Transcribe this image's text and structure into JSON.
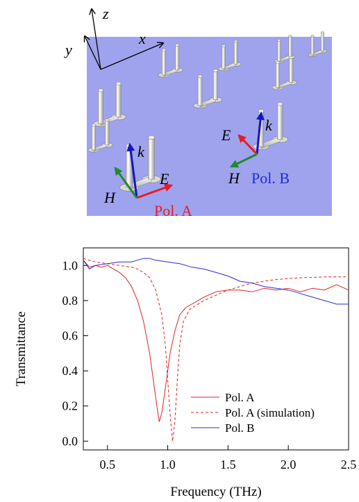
{
  "diagram": {
    "axes": {
      "x": "x",
      "y": "y",
      "z": "z"
    },
    "vectors": {
      "E": "E",
      "H": "H",
      "k": "k"
    },
    "pol_a_label": "Pol. A",
    "pol_b_label": "Pol. B",
    "colors": {
      "background": "#9fa3ee",
      "red": "#e51c23",
      "green": "#1f8a2a",
      "blue": "#1414c8",
      "pol_b_text": "#1d2bd6"
    }
  },
  "chart_data": {
    "type": "line",
    "xlabel": "Frequency (THz)",
    "ylabel": "Transmittance",
    "xlim": [
      0.3,
      2.5
    ],
    "ylim": [
      -0.05,
      1.1
    ],
    "xticks": [
      0.5,
      1.0,
      1.5,
      2.0,
      2.5
    ],
    "xtick_labels": [
      "0.5",
      "1.0",
      "1.5",
      "2.0",
      "2.5"
    ],
    "yticks": [
      0.0,
      0.2,
      0.4,
      0.6,
      0.8,
      1.0
    ],
    "ytick_labels": [
      "0.0",
      "0.2",
      "0.4",
      "0.6",
      "0.8",
      "1.0"
    ],
    "grid": false,
    "legend_position": "bottom-right",
    "series": [
      {
        "name": "Pol. A",
        "color": "#e02020",
        "dash": "solid",
        "points": [
          [
            0.3,
            1.03
          ],
          [
            0.35,
            0.99
          ],
          [
            0.4,
            1.0
          ],
          [
            0.45,
            0.99
          ],
          [
            0.5,
            1.0
          ],
          [
            0.55,
            0.98
          ],
          [
            0.6,
            0.96
          ],
          [
            0.65,
            0.93
          ],
          [
            0.7,
            0.88
          ],
          [
            0.75,
            0.8
          ],
          [
            0.8,
            0.68
          ],
          [
            0.85,
            0.5
          ],
          [
            0.88,
            0.35
          ],
          [
            0.91,
            0.2
          ],
          [
            0.93,
            0.11
          ],
          [
            0.95,
            0.16
          ],
          [
            0.98,
            0.3
          ],
          [
            1.02,
            0.5
          ],
          [
            1.06,
            0.63
          ],
          [
            1.1,
            0.72
          ],
          [
            1.15,
            0.76
          ],
          [
            1.2,
            0.78
          ],
          [
            1.3,
            0.82
          ],
          [
            1.4,
            0.85
          ],
          [
            1.5,
            0.86
          ],
          [
            1.6,
            0.86
          ],
          [
            1.7,
            0.85
          ],
          [
            1.8,
            0.87
          ],
          [
            1.9,
            0.86
          ],
          [
            2.0,
            0.87
          ],
          [
            2.1,
            0.85
          ],
          [
            2.2,
            0.87
          ],
          [
            2.3,
            0.86
          ],
          [
            2.4,
            0.89
          ],
          [
            2.5,
            0.86
          ]
        ]
      },
      {
        "name": "Pol. A (simulation)",
        "color": "#e02020",
        "dash": "dashed",
        "points": [
          [
            0.3,
            1.04
          ],
          [
            0.4,
            1.02
          ],
          [
            0.5,
            1.01
          ],
          [
            0.6,
            1.0
          ],
          [
            0.7,
            0.99
          ],
          [
            0.75,
            0.98
          ],
          [
            0.8,
            0.96
          ],
          [
            0.85,
            0.93
          ],
          [
            0.9,
            0.86
          ],
          [
            0.95,
            0.72
          ],
          [
            0.98,
            0.55
          ],
          [
            1.0,
            0.35
          ],
          [
            1.02,
            0.15
          ],
          [
            1.04,
            0.0
          ],
          [
            1.06,
            0.12
          ],
          [
            1.08,
            0.35
          ],
          [
            1.1,
            0.55
          ],
          [
            1.13,
            0.68
          ],
          [
            1.18,
            0.75
          ],
          [
            1.3,
            0.8
          ],
          [
            1.5,
            0.86
          ],
          [
            1.7,
            0.9
          ],
          [
            1.9,
            0.92
          ],
          [
            2.1,
            0.93
          ],
          [
            2.3,
            0.935
          ],
          [
            2.5,
            0.935
          ]
        ]
      },
      {
        "name": "Pol. B",
        "color": "#2a2ad8",
        "dash": "solid",
        "points": [
          [
            0.3,
            1.03
          ],
          [
            0.35,
            0.98
          ],
          [
            0.4,
            1.0
          ],
          [
            0.5,
            1.01
          ],
          [
            0.6,
            1.02
          ],
          [
            0.7,
            1.02
          ],
          [
            0.75,
            1.03
          ],
          [
            0.8,
            1.04
          ],
          [
            0.85,
            1.04
          ],
          [
            0.9,
            1.03
          ],
          [
            1.0,
            1.02
          ],
          [
            1.1,
            1.01
          ],
          [
            1.2,
            0.99
          ],
          [
            1.3,
            0.98
          ],
          [
            1.4,
            0.96
          ],
          [
            1.5,
            0.94
          ],
          [
            1.6,
            0.91
          ],
          [
            1.7,
            0.9
          ],
          [
            1.8,
            0.88
          ],
          [
            1.9,
            0.87
          ],
          [
            2.0,
            0.86
          ],
          [
            2.1,
            0.84
          ],
          [
            2.2,
            0.82
          ],
          [
            2.3,
            0.8
          ],
          [
            2.4,
            0.78
          ],
          [
            2.5,
            0.78
          ]
        ]
      }
    ]
  }
}
